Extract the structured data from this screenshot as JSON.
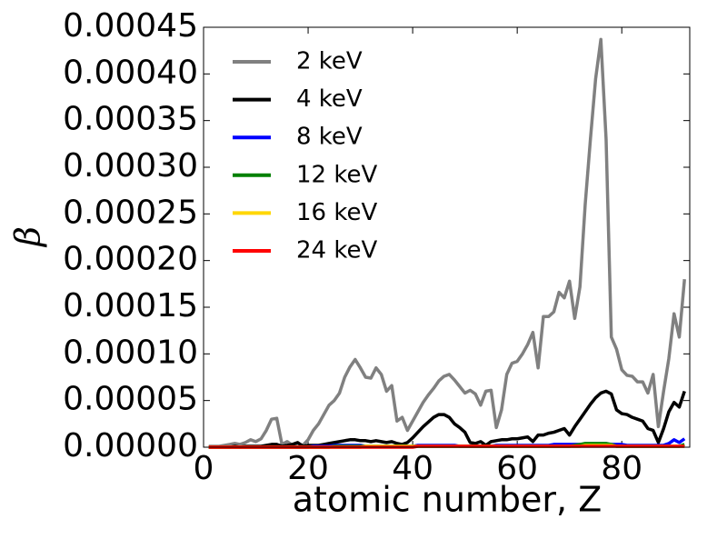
{
  "chart_data": {
    "type": "line",
    "xlabel": "atomic number, Z",
    "ylabel": "β",
    "x": [
      1,
      2,
      3,
      4,
      5,
      6,
      7,
      8,
      9,
      10,
      11,
      12,
      13,
      14,
      15,
      16,
      17,
      18,
      19,
      20,
      21,
      22,
      23,
      24,
      25,
      26,
      27,
      28,
      29,
      30,
      31,
      32,
      33,
      34,
      35,
      36,
      37,
      38,
      39,
      40,
      41,
      42,
      43,
      44,
      45,
      46,
      47,
      48,
      49,
      50,
      51,
      52,
      53,
      54,
      55,
      56,
      57,
      58,
      59,
      60,
      61,
      62,
      63,
      64,
      65,
      66,
      67,
      68,
      69,
      70,
      71,
      72,
      73,
      74,
      75,
      76,
      77,
      78,
      79,
      80,
      81,
      82,
      83,
      84,
      85,
      86,
      87,
      88,
      89,
      90,
      91,
      92
    ],
    "series": [
      {
        "name": "2 keV",
        "color": "#808080",
        "values": [
          1e-06,
          1e-06,
          1e-06,
          2e-06,
          3e-06,
          4e-06,
          3e-06,
          5e-06,
          8e-06,
          6e-06,
          9e-06,
          1.8e-05,
          3e-05,
          3.1e-05,
          3e-06,
          6e-06,
          2e-06,
          4e-06,
          2e-06,
          8e-06,
          1.8e-05,
          2.5e-05,
          3.5e-05,
          4.5e-05,
          5e-05,
          5.8e-05,
          7.5e-05,
          8.6e-05,
          9.4e-05,
          8.5e-05,
          7.5e-05,
          7.4e-05,
          8.5e-05,
          7.8e-05,
          6e-05,
          6.6e-05,
          2.8e-05,
          3.2e-05,
          1.8e-05,
          2.8e-05,
          3.8e-05,
          4.8e-05,
          5.6e-05,
          6.3e-05,
          7.1e-05,
          7.6e-05,
          7.8e-05,
          7.2e-05,
          6.5e-05,
          5.8e-05,
          6.1e-05,
          5.7e-05,
          4.5e-05,
          6e-05,
          6.1e-05,
          2.1e-05,
          4e-05,
          7.8e-05,
          9e-05,
          9.2e-05,
          0.0001,
          0.00011,
          0.000123,
          8.5e-05,
          0.00014,
          0.00014,
          0.000145,
          0.000166,
          0.00016,
          0.000178,
          0.000138,
          0.000172,
          0.00026,
          0.00033,
          0.000395,
          0.000437,
          0.00033,
          0.000118,
          0.000105,
          8.3e-05,
          7.7e-05,
          7.6e-05,
          7e-05,
          7e-05,
          5.8e-05,
          7.8e-05,
          2.2e-05,
          6e-05,
          9.5e-05,
          0.000143,
          0.000118,
          0.00018
        ]
      },
      {
        "name": "4 keV",
        "color": "#000000",
        "values": [
          0,
          0,
          0,
          0,
          0,
          1e-06,
          0,
          1e-06,
          1e-06,
          1e-06,
          1e-06,
          2e-06,
          3e-06,
          3e-06,
          1e-06,
          2e-06,
          3e-06,
          5e-06,
          1e-06,
          2e-06,
          2e-06,
          2e-06,
          3e-06,
          4e-06,
          5e-06,
          6e-06,
          7e-06,
          8e-06,
          8e-06,
          7e-06,
          7e-06,
          6e-06,
          7e-06,
          6e-06,
          5e-06,
          6e-06,
          4e-06,
          3e-06,
          5e-06,
          1e-05,
          1.6e-05,
          2.2e-05,
          2.7e-05,
          3.2e-05,
          3.5e-05,
          3.5e-05,
          3.2e-05,
          2.5e-05,
          2.1e-05,
          1.6e-05,
          5e-06,
          4e-06,
          6e-06,
          2e-06,
          6e-06,
          7e-06,
          8e-06,
          8e-06,
          9e-06,
          9e-06,
          1e-05,
          1.1e-05,
          6e-06,
          1.3e-05,
          1.3e-05,
          1.5e-05,
          1.6e-05,
          1.8e-05,
          2e-05,
          1.3e-05,
          2.2e-05,
          3e-05,
          3.8e-05,
          4.6e-05,
          5.3e-05,
          5.8e-05,
          6e-05,
          5.7e-05,
          4e-05,
          3.6e-05,
          3.5e-05,
          3.2e-05,
          3e-05,
          2.8e-05,
          2e-05,
          1.8e-05,
          5e-06,
          2e-05,
          3.8e-05,
          4.8e-05,
          4.3e-05,
          6e-05
        ]
      },
      {
        "name": "8 keV",
        "color": "#0000ff",
        "values": [
          0,
          0,
          0,
          0,
          0,
          0,
          0,
          0,
          0,
          0,
          0,
          0,
          0,
          0,
          0,
          0,
          0,
          0,
          0,
          0,
          1e-06,
          1e-06,
          1e-06,
          1e-06,
          2e-06,
          2e-06,
          2e-06,
          2e-06,
          2e-06,
          2e-06,
          1e-06,
          1e-06,
          1e-06,
          1e-06,
          1e-06,
          1e-06,
          1e-06,
          1e-06,
          1e-06,
          1e-06,
          2e-06,
          2e-06,
          2e-06,
          2e-06,
          2e-06,
          2e-06,
          2e-06,
          2e-06,
          1e-06,
          1e-06,
          1e-06,
          1e-06,
          1e-06,
          1e-06,
          1e-06,
          2e-06,
          2e-06,
          2e-06,
          2e-06,
          2e-06,
          2e-06,
          2e-06,
          2e-06,
          2e-06,
          2e-06,
          2e-06,
          3e-06,
          3e-06,
          3e-06,
          3e-06,
          3e-06,
          3e-06,
          3e-06,
          3e-06,
          3e-06,
          3e-06,
          3e-06,
          3e-06,
          3e-06,
          3e-06,
          2e-06,
          2e-06,
          2e-06,
          2e-06,
          2e-06,
          2e-06,
          2e-06,
          2e-06,
          4e-06,
          8e-06,
          5e-06,
          9e-06
        ]
      },
      {
        "name": "12 keV",
        "color": "#008000",
        "values": [
          0,
          0,
          0,
          0,
          0,
          0,
          0,
          0,
          0,
          0,
          0,
          0,
          0,
          0,
          0,
          0,
          0,
          0,
          0,
          0,
          0,
          0,
          0,
          0,
          1e-06,
          1e-06,
          1e-06,
          1e-06,
          1e-06,
          1e-06,
          1e-06,
          1e-06,
          1e-06,
          1e-06,
          1e-06,
          1e-06,
          1e-06,
          1e-06,
          1e-06,
          1e-06,
          1e-06,
          1e-06,
          1e-06,
          1e-06,
          1e-06,
          1e-06,
          1e-06,
          1e-06,
          1e-06,
          1e-06,
          1e-06,
          1e-06,
          1e-06,
          1e-06,
          1e-06,
          1e-06,
          1e-06,
          1e-06,
          1e-06,
          1e-06,
          1e-06,
          1e-06,
          1e-06,
          1e-06,
          1e-06,
          1e-06,
          1e-06,
          1e-06,
          1e-06,
          1e-06,
          2e-06,
          3e-06,
          4e-06,
          4e-06,
          4e-06,
          4e-06,
          4e-06,
          3e-06,
          1e-06,
          1e-06,
          1e-06,
          1e-06,
          1e-06,
          1e-06,
          1e-06,
          1e-06,
          1e-06,
          1e-06,
          1e-06,
          1e-06,
          1e-06,
          3e-06
        ]
      },
      {
        "name": "16 keV",
        "color": "#ffd700",
        "values": [
          0,
          0,
          0,
          0,
          0,
          0,
          0,
          0,
          0,
          0,
          0,
          0,
          0,
          0,
          0,
          0,
          0,
          0,
          0,
          0,
          0,
          0,
          0,
          0,
          0,
          0,
          0,
          0,
          0,
          0,
          1e-06,
          1e-06,
          1e-06,
          1e-06,
          1e-06,
          1e-06,
          1e-06,
          1e-06,
          1e-06,
          1e-06,
          1e-06,
          1e-06,
          1e-06,
          1e-06,
          1e-06,
          1e-06,
          1e-06,
          1e-06,
          1e-06,
          1e-06,
          1e-06,
          1e-06,
          1e-06,
          1e-06,
          1e-06,
          1e-06,
          1e-06,
          1e-06,
          1e-06,
          1e-06,
          1e-06,
          1e-06,
          1e-06,
          1e-06,
          1e-06,
          1e-06,
          1e-06,
          1e-06,
          1e-06,
          1e-06,
          1e-06,
          1e-06,
          2e-06,
          2e-06,
          2e-06,
          2e-06,
          2e-06,
          2e-06,
          1e-06,
          1e-06,
          1e-06,
          1e-06,
          1e-06,
          1e-06,
          1e-06,
          1e-06,
          1e-06,
          1e-06,
          1e-06,
          1e-06,
          1e-06,
          1e-06
        ]
      },
      {
        "name": "24 keV",
        "color": "#ff0000",
        "values": [
          0,
          0,
          0,
          0,
          0,
          0,
          0,
          0,
          0,
          0,
          0,
          0,
          0,
          0,
          0,
          0,
          0,
          0,
          0,
          0,
          0,
          0,
          0,
          0,
          0,
          0,
          0,
          0,
          0,
          0,
          0,
          0,
          0,
          0,
          0,
          0,
          0,
          0,
          0,
          0,
          1e-06,
          1e-06,
          1e-06,
          1e-06,
          1e-06,
          1e-06,
          1e-06,
          1e-06,
          1e-06,
          1e-06,
          1e-06,
          1e-06,
          1e-06,
          1e-06,
          1e-06,
          1e-06,
          1e-06,
          1e-06,
          1e-06,
          1e-06,
          1e-06,
          1e-06,
          1e-06,
          1e-06,
          1e-06,
          1e-06,
          1e-06,
          1e-06,
          1e-06,
          1e-06,
          1e-06,
          1e-06,
          1e-06,
          1e-06,
          1e-06,
          1e-06,
          1e-06,
          1e-06,
          1e-06,
          1e-06,
          1e-06,
          1e-06,
          1e-06,
          1e-06,
          1e-06,
          1e-06,
          1e-06,
          1e-06,
          1e-06,
          1e-06,
          1e-06,
          1e-06
        ]
      }
    ],
    "xlim": [
      0,
      93
    ],
    "xticks": [
      0,
      20,
      40,
      60,
      80
    ],
    "ylim": [
      0,
      0.00045
    ],
    "yticks": [
      {
        "value": 0,
        "label": "0.00000"
      },
      {
        "value": 5e-05,
        "label": "0.00005"
      },
      {
        "value": 0.0001,
        "label": "0.00010"
      },
      {
        "value": 0.00015,
        "label": "0.00015"
      },
      {
        "value": 0.0002,
        "label": "0.00020"
      },
      {
        "value": 0.00025,
        "label": "0.00025"
      },
      {
        "value": 0.0003,
        "label": "0.00030"
      },
      {
        "value": 0.00035,
        "label": "0.00035"
      },
      {
        "value": 0.0004,
        "label": "0.00040"
      },
      {
        "value": 0.00045,
        "label": "0.00045"
      }
    ],
    "grid": false,
    "legend": "upper left"
  }
}
